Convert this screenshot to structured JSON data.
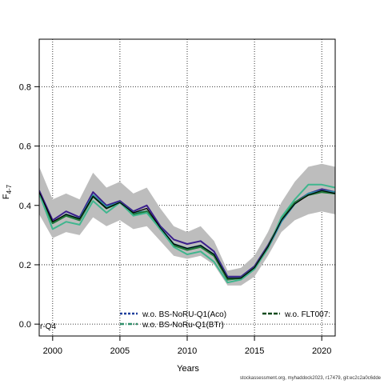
{
  "chart_data": {
    "type": "line",
    "xlabel": "Years",
    "ylabel_main": "F",
    "ylabel_sub": "4-7",
    "xlim": [
      1999,
      2021
    ],
    "ylim": [
      -0.04,
      0.96
    ],
    "xticks": [
      2000,
      2005,
      2010,
      2015,
      2020
    ],
    "yticks": [
      0.0,
      0.2,
      0.4,
      0.6,
      0.8
    ],
    "ytick_labels": [
      "0.0",
      "0.2",
      "0.4",
      "0.6",
      "0.8"
    ],
    "grid": true,
    "x": [
      1999,
      2000,
      2001,
      2002,
      2003,
      2004,
      2005,
      2006,
      2007,
      2008,
      2009,
      2010,
      2011,
      2012,
      2013,
      2014,
      2015,
      2016,
      2017,
      2018,
      2019,
      2020,
      2021
    ],
    "band": {
      "upper": [
        0.53,
        0.42,
        0.44,
        0.42,
        0.51,
        0.46,
        0.48,
        0.44,
        0.46,
        0.39,
        0.33,
        0.31,
        0.33,
        0.28,
        0.18,
        0.19,
        0.23,
        0.31,
        0.41,
        0.48,
        0.53,
        0.54,
        0.53
      ],
      "lower": [
        0.37,
        0.29,
        0.31,
        0.3,
        0.36,
        0.33,
        0.35,
        0.32,
        0.33,
        0.28,
        0.23,
        0.22,
        0.23,
        0.2,
        0.13,
        0.13,
        0.16,
        0.23,
        0.31,
        0.35,
        0.37,
        0.38,
        0.37
      ],
      "color": "#bdbdbd"
    },
    "series": [
      {
        "name": "w.o. BS-NoRU-Q1(Aco)",
        "color": "#3b1f8c",
        "values": [
          0.45,
          0.35,
          0.38,
          0.36,
          0.445,
          0.4,
          0.415,
          0.38,
          0.4,
          0.33,
          0.285,
          0.27,
          0.28,
          0.245,
          0.16,
          0.16,
          0.195,
          0.265,
          0.35,
          0.41,
          0.44,
          0.455,
          0.445
        ]
      },
      {
        "name": "w.o. BS-NoRu-Q1(BTr)",
        "color": "#2a8fa8",
        "values": [
          0.44,
          0.34,
          0.37,
          0.355,
          0.435,
          0.395,
          0.41,
          0.375,
          0.38,
          0.325,
          0.27,
          0.255,
          0.265,
          0.235,
          0.155,
          0.155,
          0.19,
          0.255,
          0.345,
          0.405,
          0.44,
          0.45,
          0.445
        ]
      },
      {
        "name": "w.o. FLT007",
        "color": "#1f7a3a",
        "values": [
          0.44,
          0.34,
          0.365,
          0.35,
          0.43,
          0.39,
          0.41,
          0.37,
          0.38,
          0.32,
          0.265,
          0.25,
          0.26,
          0.23,
          0.15,
          0.155,
          0.19,
          0.26,
          0.355,
          0.41,
          0.435,
          0.445,
          0.44
        ]
      },
      {
        "name": "",
        "color": "#3fb68e",
        "values": [
          0.44,
          0.32,
          0.345,
          0.335,
          0.415,
          0.375,
          0.41,
          0.365,
          0.375,
          0.32,
          0.26,
          0.235,
          0.245,
          0.21,
          0.14,
          0.15,
          0.185,
          0.255,
          0.36,
          0.42,
          0.47,
          0.47,
          0.46
        ]
      },
      {
        "name": "",
        "color": "#000000",
        "values": [
          0.445,
          0.345,
          0.37,
          0.355,
          0.43,
          0.39,
          0.41,
          0.375,
          0.39,
          0.325,
          0.27,
          0.255,
          0.265,
          0.235,
          0.155,
          0.155,
          0.19,
          0.26,
          0.35,
          0.405,
          0.435,
          0.45,
          0.44
        ]
      }
    ],
    "legend": [
      {
        "label": "w.o. BS-NoRU-Q1(Aco)",
        "color": "#1f3f9c",
        "dash": "3,2"
      },
      {
        "label": "w.o. BS-NoRu-Q1(BTr)",
        "color": "#2f8f6a",
        "dash": "5,2,1,2"
      },
      {
        "label": "w.o. FLT007:",
        "color": "#124a1e",
        "dash": "5,2"
      }
    ],
    "left_partial_label": "r-Q4"
  },
  "footer": "stockassessment.org, myhaddock2023, r17479, git:ec2c2a0c6dde"
}
